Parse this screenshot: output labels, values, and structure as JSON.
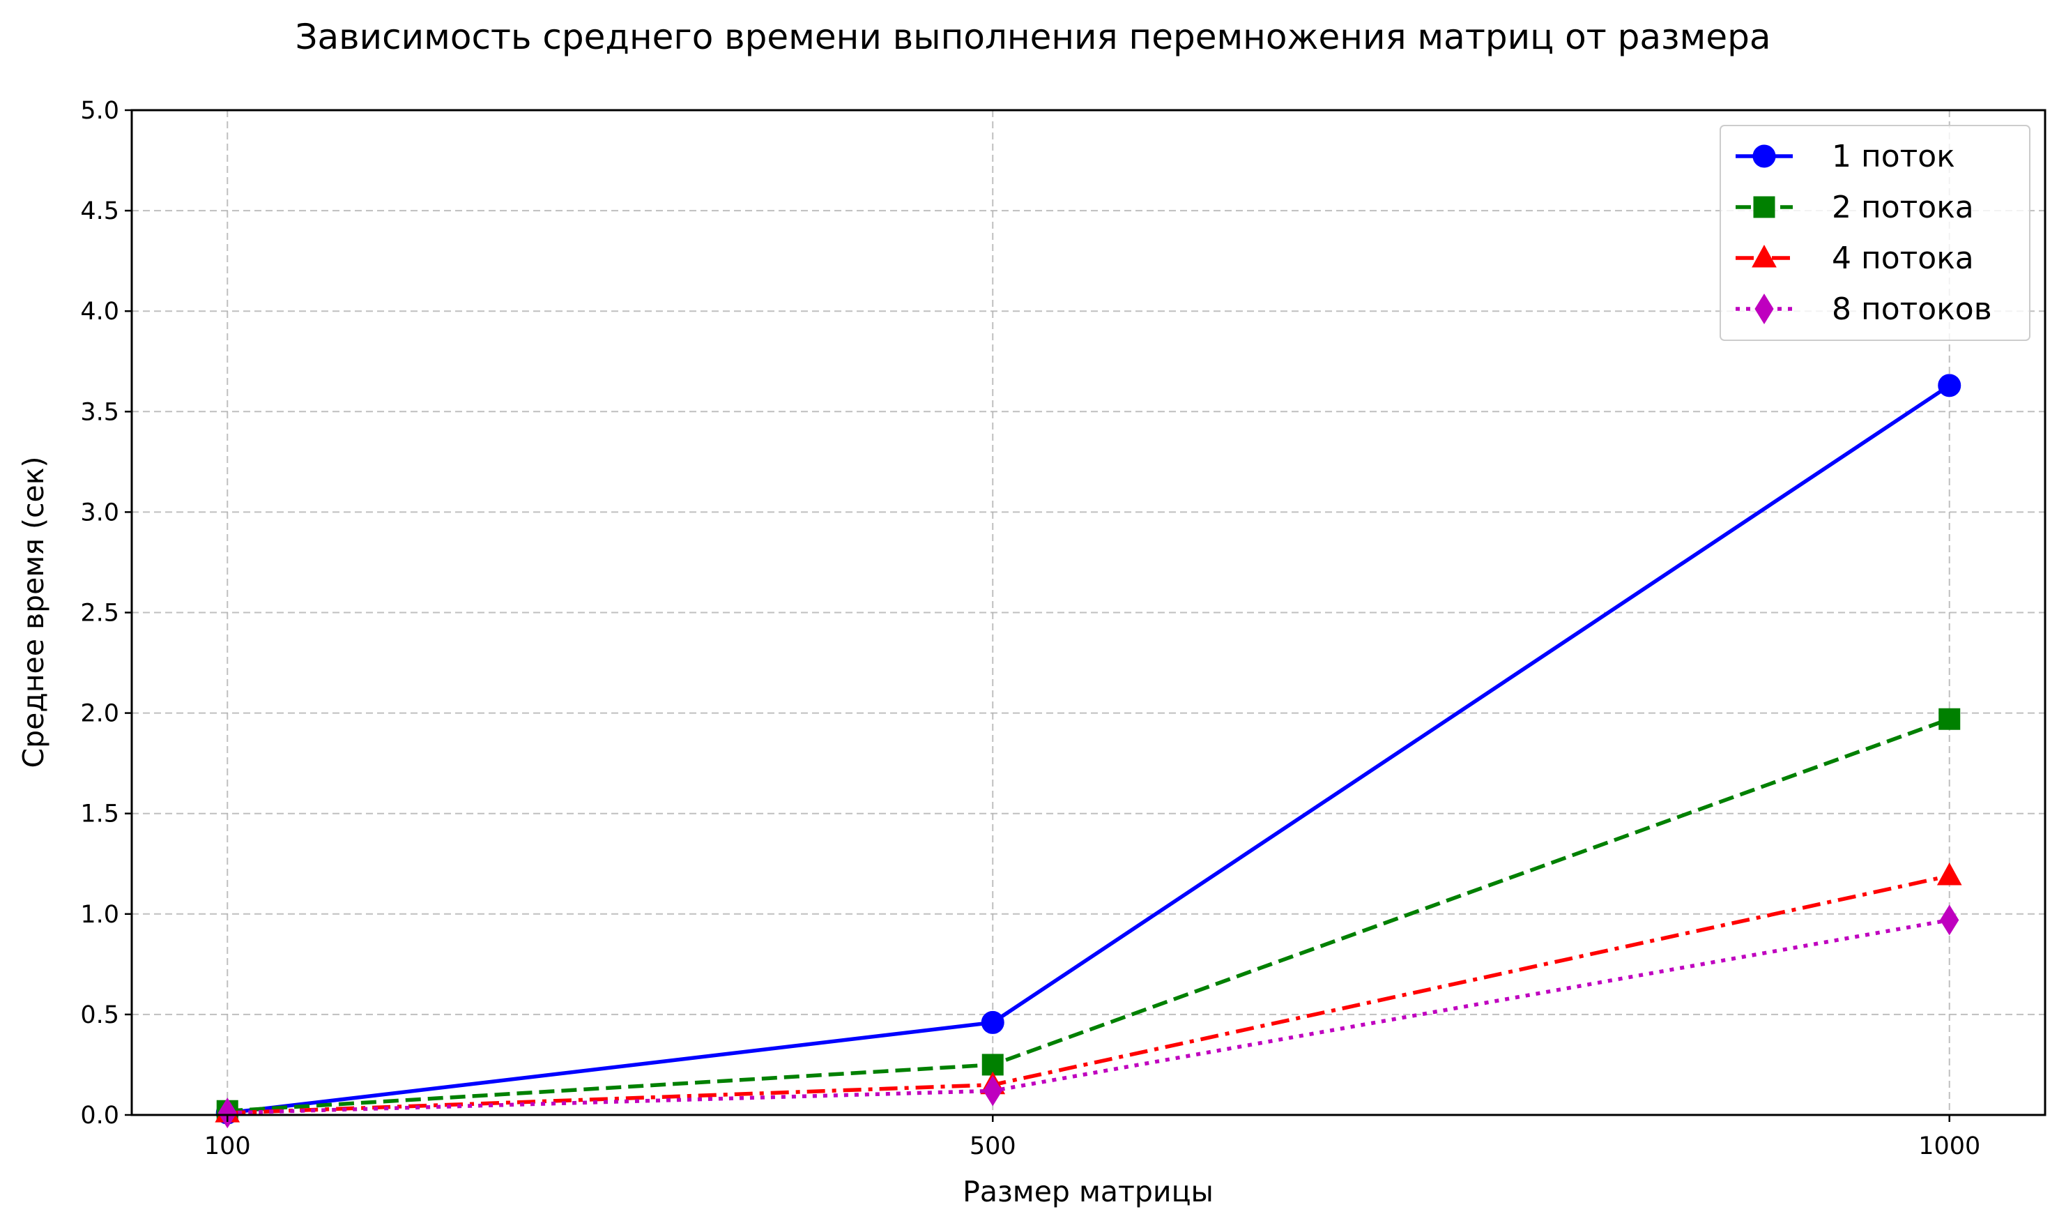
{
  "chart_data": {
    "type": "line",
    "title": "Зависимость среднего времени выполнения перемножения матриц от размера",
    "xlabel": "Размер матрицы",
    "ylabel": "Среднее время (сек)",
    "x": [
      100,
      500,
      1000
    ],
    "x_tick_labels": [
      "100",
      "500",
      "1000"
    ],
    "xlim": [
      50,
      1050
    ],
    "ylim": [
      0,
      5
    ],
    "y_ticks": [
      0.0,
      0.5,
      1.0,
      1.5,
      2.0,
      2.5,
      3.0,
      3.5,
      4.0,
      4.5,
      5.0
    ],
    "grid": true,
    "legend_position": "top-right",
    "series": [
      {
        "name": "1 поток",
        "values": [
          0.01,
          0.46,
          3.63
        ],
        "color": "#0000ff",
        "line_style": "solid",
        "marker": "circle"
      },
      {
        "name": "2 потока",
        "values": [
          0.02,
          0.25,
          1.97
        ],
        "color": "#008000",
        "line_style": "dashed",
        "marker": "square"
      },
      {
        "name": "4 потока",
        "values": [
          0.01,
          0.15,
          1.19
        ],
        "color": "#ff0000",
        "line_style": "dashdot",
        "marker": "triangle"
      },
      {
        "name": "8 потоков",
        "values": [
          0.01,
          0.12,
          0.97
        ],
        "color": "#bf00bf",
        "line_style": "dotted",
        "marker": "diamond"
      }
    ]
  }
}
